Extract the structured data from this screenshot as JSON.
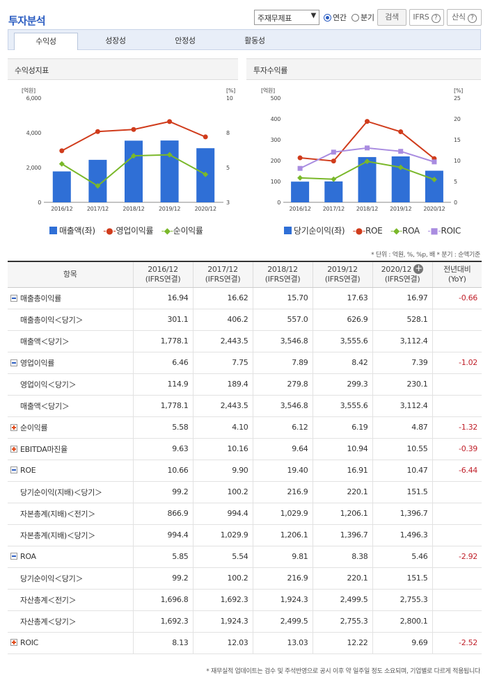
{
  "header": {
    "title": "투자분석",
    "select_value": "주재무제표",
    "radio_annual": "연간",
    "radio_quarter": "분기",
    "search_btn": "검색",
    "ifrs_btn": "IFRS",
    "formula_btn": "산식",
    "help": "?"
  },
  "tabs": [
    "수익성",
    "성장성",
    "안정성",
    "활동성"
  ],
  "charts": {
    "left": {
      "title": "수익성지표",
      "left_unit": "[억원]",
      "right_unit": "[%]",
      "legend": [
        "매출액(좌)",
        "영업이익률",
        "순이익률"
      ]
    },
    "right": {
      "title": "투자수익률",
      "left_unit": "[억원]",
      "right_unit": "[%]",
      "legend": [
        "당기순이익(좌)",
        "ROE",
        "ROA",
        "ROIC"
      ]
    }
  },
  "chart_data": [
    {
      "type": "bar",
      "title": "수익성지표",
      "categories": [
        "2016/12",
        "2017/12",
        "2018/12",
        "2019/12",
        "2020/12"
      ],
      "series": [
        {
          "name": "매출액(좌)",
          "axis": "left",
          "kind": "bar",
          "color": "#2f6fd6",
          "values": [
            1778.1,
            2443.5,
            3546.8,
            3555.6,
            3112.4
          ]
        },
        {
          "name": "영업이익률",
          "axis": "right",
          "kind": "line",
          "color": "#d03c1c",
          "values": [
            6.46,
            7.75,
            7.89,
            8.42,
            7.39
          ]
        },
        {
          "name": "순이익률",
          "axis": "right",
          "kind": "line",
          "color": "#7ab82a",
          "values": [
            5.58,
            4.1,
            6.12,
            6.19,
            4.87
          ]
        }
      ],
      "ylim": [
        0,
        6000
      ],
      "yticks": [
        "0",
        "2,000",
        "4,000",
        "6,000"
      ],
      "y2lim": [
        3,
        10
      ],
      "y2ticks": [
        "3",
        "5",
        "8",
        "10"
      ]
    },
    {
      "type": "bar",
      "title": "투자수익률",
      "categories": [
        "2016/12",
        "2017/12",
        "2018/12",
        "2019/12",
        "2020/12"
      ],
      "series": [
        {
          "name": "당기순이익(좌)",
          "axis": "left",
          "kind": "bar",
          "color": "#2f6fd6",
          "values": [
            99.2,
            100.2,
            216.9,
            220.1,
            151.5
          ]
        },
        {
          "name": "ROE",
          "axis": "right",
          "kind": "line",
          "color": "#d03c1c",
          "values": [
            10.66,
            9.9,
            19.4,
            16.91,
            10.47
          ]
        },
        {
          "name": "ROA",
          "axis": "right",
          "kind": "line",
          "color": "#7ab82a",
          "values": [
            5.85,
            5.54,
            9.81,
            8.38,
            5.46
          ]
        },
        {
          "name": "ROIC",
          "axis": "right",
          "kind": "line",
          "color": "#a98ce0",
          "values": [
            8.13,
            12.03,
            13.03,
            12.22,
            9.69
          ]
        }
      ],
      "ylim": [
        0,
        500
      ],
      "yticks": [
        "0",
        "100",
        "200",
        "300",
        "400",
        "500"
      ],
      "y2lim": [
        0,
        25
      ],
      "y2ticks": [
        "0",
        "5",
        "10",
        "15",
        "20",
        "25"
      ]
    }
  ],
  "unit_note": "* 단위 : 억원, %, %p, 배   * 분기 : 순액기준",
  "table": {
    "col_item": "항목",
    "cols": [
      {
        "y": "2016/12",
        "s": "(IFRS연결)"
      },
      {
        "y": "2017/12",
        "s": "(IFRS연결)"
      },
      {
        "y": "2018/12",
        "s": "(IFRS연결)"
      },
      {
        "y": "2019/12",
        "s": "(IFRS연결)"
      },
      {
        "y": "2020/12",
        "s": "(IFRS연결)"
      }
    ],
    "col_yoy": "전년대비",
    "col_yoy2": "(YoY)",
    "rows": [
      {
        "label": "매출총이익률",
        "toggle": "minus",
        "v": [
          "16.94",
          "16.62",
          "15.70",
          "17.63",
          "16.97"
        ],
        "yoy": "-0.66"
      },
      {
        "label": "매출총이익＜당기＞",
        "sub": true,
        "v": [
          "301.1",
          "406.2",
          "557.0",
          "626.9",
          "528.1"
        ],
        "yoy": ""
      },
      {
        "label": "매출액＜당기＞",
        "sub": true,
        "v": [
          "1,778.1",
          "2,443.5",
          "3,546.8",
          "3,555.6",
          "3,112.4"
        ],
        "yoy": ""
      },
      {
        "label": "영업이익률",
        "toggle": "minus",
        "v": [
          "6.46",
          "7.75",
          "7.89",
          "8.42",
          "7.39"
        ],
        "yoy": "-1.02"
      },
      {
        "label": "영업이익＜당기＞",
        "sub": true,
        "v": [
          "114.9",
          "189.4",
          "279.8",
          "299.3",
          "230.1"
        ],
        "yoy": ""
      },
      {
        "label": "매출액＜당기＞",
        "sub": true,
        "v": [
          "1,778.1",
          "2,443.5",
          "3,546.8",
          "3,555.6",
          "3,112.4"
        ],
        "yoy": ""
      },
      {
        "label": "순이익률",
        "toggle": "plus",
        "v": [
          "5.58",
          "4.10",
          "6.12",
          "6.19",
          "4.87"
        ],
        "yoy": "-1.32"
      },
      {
        "label": "EBITDA마진율",
        "toggle": "plus",
        "v": [
          "9.63",
          "10.16",
          "9.64",
          "10.94",
          "10.55"
        ],
        "yoy": "-0.39"
      },
      {
        "label": "ROE",
        "toggle": "minus",
        "v": [
          "10.66",
          "9.90",
          "19.40",
          "16.91",
          "10.47"
        ],
        "yoy": "-6.44"
      },
      {
        "label": "당기순이익(지배)＜당기＞",
        "sub": true,
        "v": [
          "99.2",
          "100.2",
          "216.9",
          "220.1",
          "151.5"
        ],
        "yoy": ""
      },
      {
        "label": "자본총계(지배)＜전기＞",
        "sub": true,
        "v": [
          "866.9",
          "994.4",
          "1,029.9",
          "1,206.1",
          "1,396.7"
        ],
        "yoy": ""
      },
      {
        "label": "자본총계(지배)＜당기＞",
        "sub": true,
        "v": [
          "994.4",
          "1,029.9",
          "1,206.1",
          "1,396.7",
          "1,496.3"
        ],
        "yoy": ""
      },
      {
        "label": "ROA",
        "toggle": "minus",
        "v": [
          "5.85",
          "5.54",
          "9.81",
          "8.38",
          "5.46"
        ],
        "yoy": "-2.92"
      },
      {
        "label": "당기순이익＜당기＞",
        "sub": true,
        "v": [
          "99.2",
          "100.2",
          "216.9",
          "220.1",
          "151.5"
        ],
        "yoy": ""
      },
      {
        "label": "자산총계＜전기＞",
        "sub": true,
        "v": [
          "1,696.8",
          "1,692.3",
          "1,924.3",
          "2,499.5",
          "2,755.3"
        ],
        "yoy": ""
      },
      {
        "label": "자산총계＜당기＞",
        "sub": true,
        "v": [
          "1,692.3",
          "1,924.3",
          "2,499.5",
          "2,755.3",
          "2,800.1"
        ],
        "yoy": ""
      },
      {
        "label": "ROIC",
        "toggle": "plus",
        "v": [
          "8.13",
          "12.03",
          "13.03",
          "12.22",
          "9.69"
        ],
        "yoy": "-2.52"
      }
    ]
  },
  "footnote": "* 재무실적 업데이트는 검수 및 주석반영으로 공시 이후 약 일주일 정도 소요되며, 기업별로 다르게 적용됩니다"
}
